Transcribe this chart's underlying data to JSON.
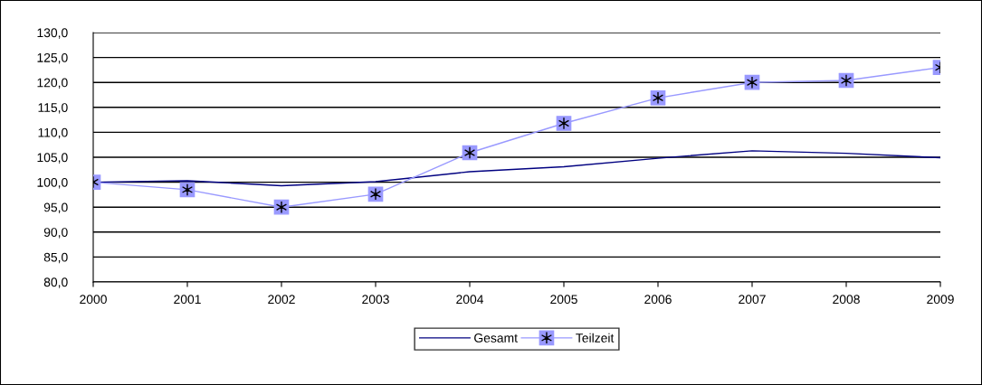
{
  "chart_data": {
    "type": "line",
    "categories": [
      "2000",
      "2001",
      "2002",
      "2003",
      "2004",
      "2005",
      "2006",
      "2007",
      "2008",
      "2009"
    ],
    "series": [
      {
        "name": "Gesamt",
        "color": "#000080",
        "marker": "none",
        "values": [
          100.0,
          100.3,
          99.3,
          100.1,
          102.1,
          103.1,
          104.8,
          106.3,
          105.8,
          104.9
        ]
      },
      {
        "name": "Teilzeit",
        "color": "#9999ff",
        "marker": "square",
        "values": [
          100.0,
          98.5,
          95.0,
          97.6,
          105.9,
          111.8,
          116.9,
          120.0,
          120.4,
          123.0
        ]
      }
    ],
    "ylim": [
      80,
      130
    ],
    "yticks": [
      {
        "value": 80,
        "label": "80,0"
      },
      {
        "value": 85,
        "label": "85,0"
      },
      {
        "value": 90,
        "label": "90,0"
      },
      {
        "value": 95,
        "label": "95,0"
      },
      {
        "value": 100,
        "label": "100,0"
      },
      {
        "value": 105,
        "label": "105,0"
      },
      {
        "value": 110,
        "label": "110,0"
      },
      {
        "value": 115,
        "label": "115,0"
      },
      {
        "value": 120,
        "label": "120,0"
      },
      {
        "value": 125,
        "label": "125,0"
      },
      {
        "value": 130,
        "label": "130,0"
      }
    ],
    "grid": "y",
    "legend": "bottom"
  }
}
